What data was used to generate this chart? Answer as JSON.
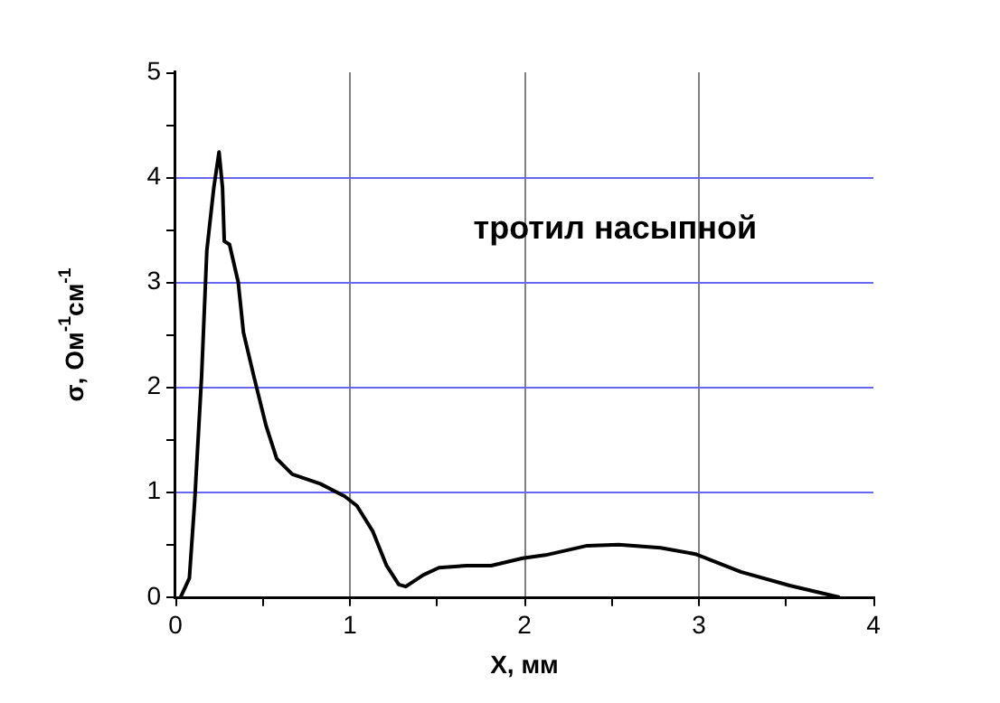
{
  "chart_data": {
    "type": "line",
    "xlabel": "X, мм",
    "ylabel": "σ, Ом$^{-1}$см$^{-1}$",
    "annotations": [
      "тротил насыпной"
    ],
    "xlim": [
      0,
      4
    ],
    "xticks": [
      0,
      {
        "value": 0.5,
        "label": null
      },
      1,
      {
        "value": 1.5,
        "label": null
      },
      2,
      {
        "value": 2.5,
        "label": null
      },
      3,
      {
        "value": 3.5,
        "label": null
      },
      4
    ],
    "ylim": [
      0,
      5
    ],
    "yticks": [
      0,
      {
        "value": 0.5,
        "label": null
      },
      1,
      {
        "value": 1.5,
        "label": null
      },
      2,
      {
        "value": 2.5,
        "label": null
      },
      3,
      {
        "value": 3.5,
        "label": null
      },
      4,
      {
        "value": 4.5,
        "label": null
      },
      5
    ],
    "grid": true,
    "legend": false,
    "marker": "none",
    "line_style": "solid",
    "series": [
      {
        "color": "#000000",
        "x": [
          0.03,
          0.08,
          0.11,
          0.15,
          0.18,
          0.22,
          0.25,
          0.27,
          0.28,
          0.31,
          0.36,
          0.39,
          0.45,
          0.52,
          0.58,
          0.67,
          0.83,
          0.97,
          1.04,
          1.13,
          1.21,
          1.28,
          1.32,
          1.42,
          1.51,
          1.67,
          1.81,
          1.99,
          2.12,
          2.36,
          2.54,
          2.78,
          2.98,
          3.24,
          3.52,
          3.8
        ],
        "values": [
          0,
          0.18,
          0.9,
          2.1,
          3.3,
          3.9,
          4.24,
          3.9,
          3.39,
          3.36,
          3.0,
          2.52,
          2.1,
          1.63,
          1.32,
          1.17,
          1.08,
          0.96,
          0.87,
          0.63,
          0.3,
          0.12,
          0.1,
          0.21,
          0.28,
          0.3,
          0.3,
          0.37,
          0.4,
          0.49,
          0.5,
          0.47,
          0.41,
          0.24,
          0.11,
          0
        ]
      }
    ]
  }
}
